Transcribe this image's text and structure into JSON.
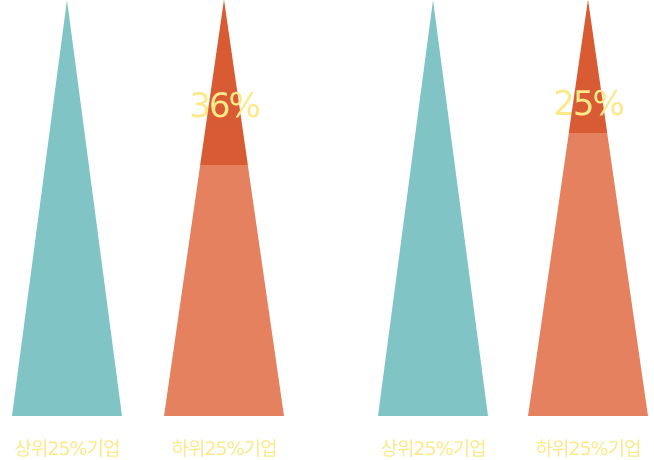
{
  "chart_data": {
    "type": "bar",
    "colors": {
      "top": "#80c4c5",
      "bottom": "#e68160",
      "highlight": "#d95b33",
      "label": "#fbe98a"
    },
    "groups": [
      {
        "bars": [
          {
            "label": "상위25%기업",
            "kind": "top"
          },
          {
            "label": "하위25%기업",
            "kind": "bottom",
            "highlight_value": 36,
            "value_label": "36%"
          }
        ]
      },
      {
        "bars": [
          {
            "label": "상위25%기업",
            "kind": "top"
          },
          {
            "label": "하위25%기업",
            "kind": "bottom",
            "highlight_value": 25,
            "value_label": "25%"
          }
        ]
      }
    ]
  }
}
